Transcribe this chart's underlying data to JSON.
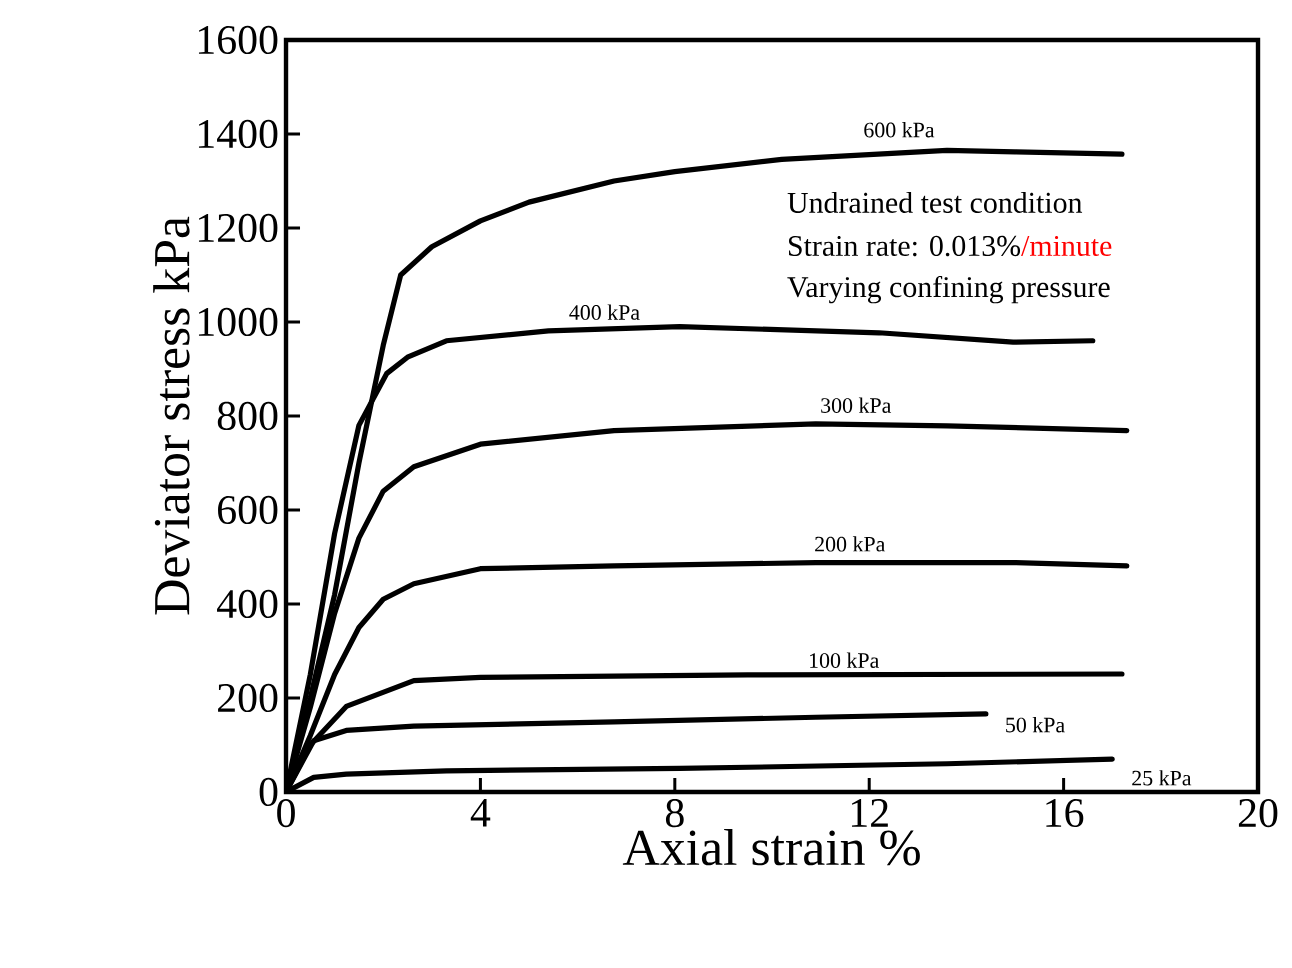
{
  "chart_data": {
    "type": "line",
    "xlabel": "Axial strain  %",
    "ylabel": "Deviator stress kPa",
    "xlim": [
      0,
      20
    ],
    "xticks": [
      0,
      4,
      8,
      12,
      16,
      20
    ],
    "ylim": [
      0,
      1600
    ],
    "yticks": [
      0,
      200,
      400,
      600,
      800,
      1000,
      1200,
      1400,
      1600
    ],
    "grid": false,
    "marker": "none",
    "line_style": "solid",
    "series": [
      {
        "name": "600 kPa",
        "color": "#000000",
        "x": [
          0,
          0.5,
          1,
          1.5,
          2,
          2.36,
          3,
          4,
          5,
          6.75,
          8,
          10.2,
          13.6,
          15,
          17.2
        ],
        "values": [
          0,
          200,
          420,
          700,
          950,
          1100,
          1160,
          1215,
          1255,
          1300,
          1320,
          1346,
          1365,
          1362,
          1357
        ]
      },
      {
        "name": "400 kPa",
        "color": "#000000",
        "x": [
          0,
          0.5,
          1,
          1.5,
          2.07,
          2.5,
          3.3,
          5.4,
          8.1,
          12.2,
          14.96,
          16.6
        ],
        "values": [
          0,
          250,
          550,
          780,
          890,
          925,
          960,
          981,
          990,
          977,
          957,
          960
        ]
      },
      {
        "name": "300 kPa",
        "color": "#000000",
        "x": [
          0,
          0.5,
          1,
          1.5,
          2,
          2.63,
          4,
          6.75,
          10.9,
          13.6,
          17.3
        ],
        "values": [
          0,
          180,
          380,
          540,
          640,
          692,
          740,
          769,
          783,
          779,
          769
        ]
      },
      {
        "name": "200 kPa",
        "color": "#000000",
        "x": [
          0,
          0.5,
          1,
          1.5,
          2,
          2.63,
          4,
          6.75,
          10.9,
          15,
          17.3
        ],
        "values": [
          0,
          120,
          250,
          350,
          410,
          443,
          475,
          481,
          488,
          488,
          481
        ]
      },
      {
        "name": "100 kPa",
        "color": "#000000",
        "x": [
          0,
          0.5,
          1.24,
          2.63,
          4,
          9.5,
          17.2
        ],
        "values": [
          0,
          100,
          182,
          237,
          244,
          249,
          251
        ]
      },
      {
        "name": "50 kPa",
        "color": "#000000",
        "x": [
          0,
          0.57,
          1.24,
          2.63,
          6.75,
          10.9,
          14.4
        ],
        "values": [
          0,
          109,
          131,
          140,
          149,
          159,
          166
        ]
      },
      {
        "name": "25 kPa",
        "color": "#000000",
        "x": [
          0,
          0.57,
          1.24,
          3.3,
          8.1,
          13.6,
          17
        ],
        "values": [
          0,
          31,
          38,
          45,
          50,
          60,
          70
        ]
      }
    ],
    "annotations": [
      "Undrained test condition",
      "Strain rate: 0.013%",
      "/minute",
      "Varying confining pressure"
    ]
  }
}
